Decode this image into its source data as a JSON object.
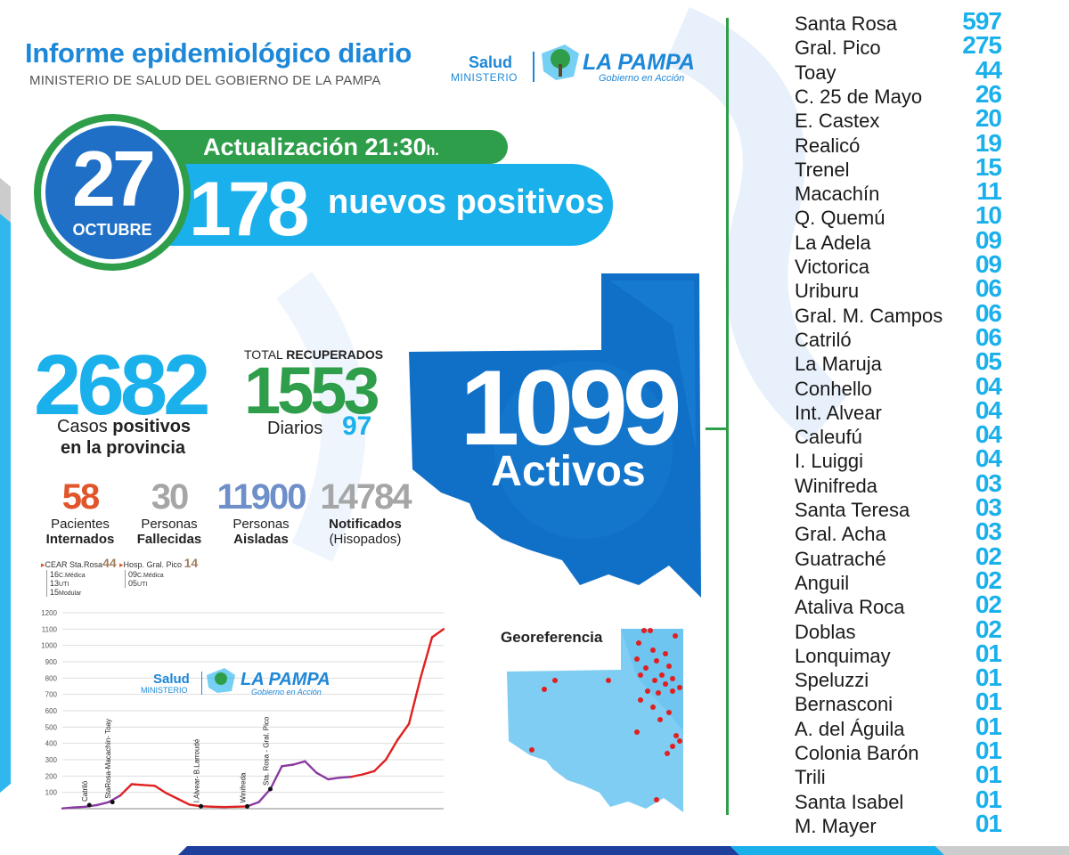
{
  "header": {
    "title": "Informe epidemiológico diario",
    "subtitle": "MINISTERIO DE SALUD DEL GOBIERNO DE LA PAMPA"
  },
  "logo": {
    "salud": "Salud",
    "ministerio": "MINISTERIO",
    "la_pampa": "LA PAMPA",
    "gobierno": "Gobierno en Acción"
  },
  "date": {
    "day": "27",
    "month": "OCTUBRE"
  },
  "update": {
    "label": "Actualización 21:30",
    "suffix": "h."
  },
  "new_cases": {
    "value": "178",
    "label": "nuevos positivos"
  },
  "total": {
    "value": "2682",
    "line1_pre": "Casos ",
    "line1_bold": "positivos",
    "line2": "en la provincia"
  },
  "recovered": {
    "label_pre": "TOTAL ",
    "label_bold": "RECUPERADOS",
    "value": "1553",
    "daily_label": "Diarios",
    "daily_value": "97"
  },
  "active": {
    "value": "1099",
    "label": "Activos"
  },
  "stats": [
    {
      "value": "58",
      "line1": "Pacientes",
      "line2": "Internados",
      "color": "#e0562a"
    },
    {
      "value": "30",
      "line1": "Personas",
      "line2": "Fallecidas",
      "color": "#a6a6a6"
    },
    {
      "value": "11900",
      "line1": "Personas",
      "line2": "Aisladas",
      "color": "#6e8fc9"
    },
    {
      "value": "14784",
      "line1": "Notificados",
      "line2": "(Hisopados)",
      "color": "#a6a6a6"
    }
  ],
  "hospitals": {
    "cear": {
      "name": "CEAR Sta.Rosa",
      "total": "44",
      "rows": [
        {
          "n": "16",
          "l": "C.Médica"
        },
        {
          "n": "13",
          "l": "UTI"
        },
        {
          "n": "15",
          "l": "Modular"
        }
      ]
    },
    "pico": {
      "name": "Hosp. Gral. Pico",
      "total": "14",
      "rows": [
        {
          "n": "09",
          "l": "C.Médica"
        },
        {
          "n": "05",
          "l": "UTI"
        }
      ]
    }
  },
  "geo_label": "Georeferencia",
  "municipalities": [
    {
      "name": "Santa Rosa",
      "value": "597"
    },
    {
      "name": "Gral. Pico",
      "value": "275"
    },
    {
      "name": "Toay",
      "value": "44"
    },
    {
      "name": "C. 25 de Mayo",
      "value": "26"
    },
    {
      "name": "E. Castex",
      "value": "20"
    },
    {
      "name": "Realicó",
      "value": "19"
    },
    {
      "name": "Trenel",
      "value": "15"
    },
    {
      "name": "Macachín",
      "value": "11"
    },
    {
      "name": "Q. Quemú",
      "value": "10"
    },
    {
      "name": "La Adela",
      "value": "09"
    },
    {
      "name": "Victorica",
      "value": "09"
    },
    {
      "name": "Uriburu",
      "value": "06"
    },
    {
      "name": "Gral. M. Campos",
      "value": "06"
    },
    {
      "name": "Catriló",
      "value": "06"
    },
    {
      "name": "La Maruja",
      "value": "05"
    },
    {
      "name": "Conhello",
      "value": "04"
    },
    {
      "name": "Int. Alvear",
      "value": "04"
    },
    {
      "name": "Caleufú",
      "value": "04"
    },
    {
      "name": "I. Luiggi",
      "value": "04"
    },
    {
      "name": "Winifreda",
      "value": "03"
    },
    {
      "name": "Santa Teresa",
      "value": "03"
    },
    {
      "name": "Gral. Acha",
      "value": "03"
    },
    {
      "name": "Guatraché",
      "value": "02"
    },
    {
      "name": "Anguil",
      "value": "02"
    },
    {
      "name": "Ataliva Roca",
      "value": "02"
    },
    {
      "name": "Doblas",
      "value": "02"
    },
    {
      "name": "Lonquimay",
      "value": "01"
    },
    {
      "name": "Speluzzi",
      "value": "01"
    },
    {
      "name": "Bernasconi",
      "value": "01"
    },
    {
      "name": "A. del Águila",
      "value": "01"
    },
    {
      "name": "Colonia Barón",
      "value": "01"
    },
    {
      "name": "Trili",
      "value": "01"
    },
    {
      "name": "Santa Isabel",
      "value": "01"
    },
    {
      "name": "M. Mayer",
      "value": "01"
    }
  ],
  "chart_data": {
    "type": "line",
    "ylim": [
      0,
      1200
    ],
    "yticks": [
      "100",
      "200",
      "300",
      "400",
      "500",
      "600",
      "700",
      "800",
      "900",
      "1000",
      "1100",
      "1200"
    ],
    "x": [
      0,
      3,
      6,
      9,
      12,
      15,
      18,
      21,
      24,
      27,
      30,
      33,
      36,
      39,
      42,
      45,
      48,
      51,
      54,
      57,
      60,
      63,
      66,
      69,
      72,
      75,
      78,
      81,
      84,
      87,
      90,
      93,
      96,
      99
    ],
    "values": [
      2,
      8,
      12,
      22,
      40,
      80,
      150,
      145,
      140,
      95,
      60,
      25,
      15,
      12,
      10,
      12,
      14,
      40,
      120,
      260,
      270,
      290,
      220,
      180,
      190,
      195,
      210,
      230,
      300,
      420,
      520,
      800,
      1050,
      1100
    ],
    "annotations": [
      "Catriló",
      "StaRosa-Macachín- Toay",
      "I.Alvear- B.Larroudé",
      "Winifreda",
      "Sta. Rosa - Gral. Pico"
    ]
  }
}
